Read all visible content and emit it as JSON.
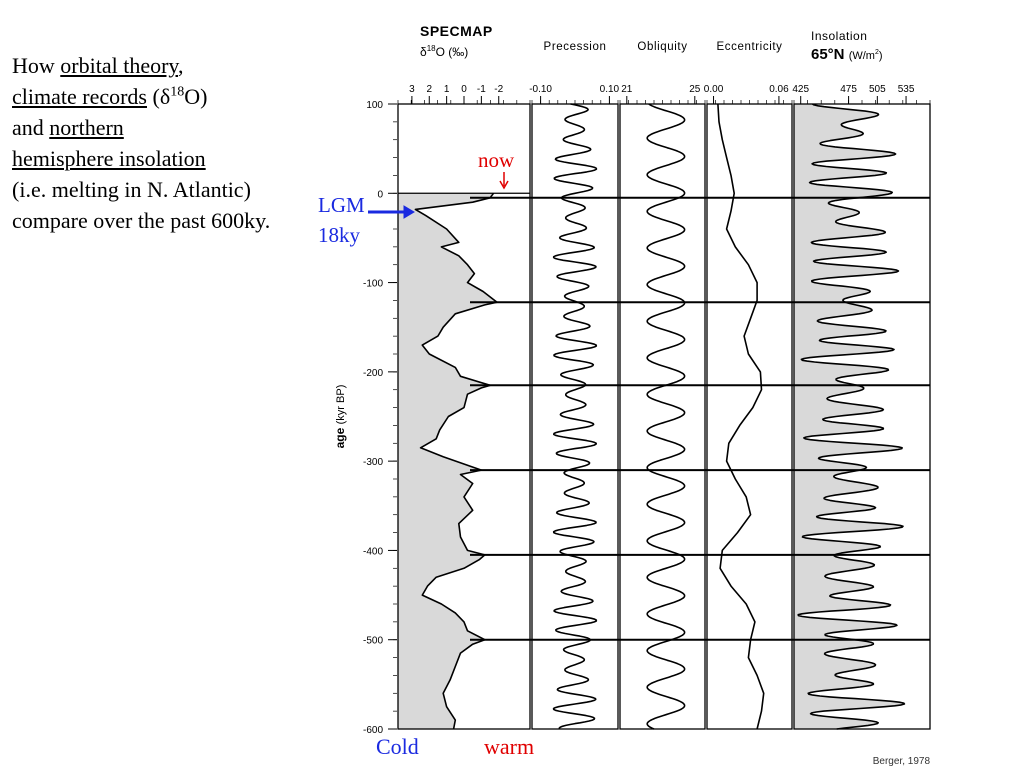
{
  "caption": {
    "p1": "How ",
    "orbital": "orbital theory",
    "p2": ",",
    "climate": "climate records",
    "p3": " (",
    "delta": "δ",
    "sup": "18",
    "p4": "O)",
    "p5": "and ",
    "northern": "northern",
    "hemisphere": "hemisphere insolation",
    "p6": "(i.e. melting in N. Atlantic) compare over the past 600ky."
  },
  "annotations": {
    "now": "now",
    "lgm": "LGM",
    "lgm_age": "18ky",
    "cold": "Cold",
    "warm": "warm"
  },
  "colors": {
    "fill": "#d9d9d9",
    "red": "#e00000",
    "blue": "#1a2ae0",
    "line": "#000000"
  },
  "chart_data": {
    "type": "line",
    "source": "Berger, 1978",
    "ylabel_bold": "age",
    "ylabel_rest": "(kyr BP)",
    "ylim": [
      100,
      -600
    ],
    "y_ticks": [
      "100",
      "0",
      "-100",
      "-200",
      "-300",
      "-400",
      "-500",
      "-600"
    ],
    "y_tick_values": [
      100,
      0,
      -100,
      -200,
      -300,
      -400,
      -500,
      -600
    ],
    "terminations_kyr": [
      -5,
      -122,
      -215,
      -310,
      -405,
      -500
    ],
    "panels": [
      {
        "id": "d18o",
        "title1": "SPECMAP",
        "title2_delta": "δ",
        "title2_sup": "18",
        "title2_rest": "O (‰)",
        "ticks": [
          "3",
          "2",
          "1",
          "0",
          "-1",
          "-2"
        ],
        "tick_values": [
          3,
          2,
          1,
          0,
          -1,
          -2
        ],
        "xlim": [
          3.8,
          -3.8
        ],
        "filled": true,
        "series": {
          "age": [
            0,
            -5,
            -10,
            -18,
            -25,
            -40,
            -55,
            -60,
            -70,
            -80,
            -90,
            -100,
            -110,
            -122,
            -125,
            -135,
            -150,
            -160,
            -170,
            -180,
            -195,
            -205,
            -215,
            -218,
            -225,
            -240,
            -250,
            -265,
            -275,
            -285,
            -295,
            -310,
            -315,
            -325,
            -340,
            -355,
            -370,
            -385,
            -400,
            -405,
            -410,
            -420,
            -430,
            -440,
            -450,
            -460,
            -470,
            -480,
            -490,
            -500,
            -505,
            -515,
            -530,
            -545,
            -560,
            -575,
            -590,
            -600
          ],
          "values": [
            -1.7,
            -1.5,
            -0.5,
            2.8,
            2.2,
            1.0,
            0.3,
            1.3,
            0.3,
            -0.2,
            -0.6,
            -0.2,
            -1.1,
            -1.9,
            -1.2,
            0.5,
            1.2,
            1.5,
            2.4,
            2.0,
            0.5,
            0.2,
            -1.5,
            -1.0,
            -0.2,
            0.0,
            0.9,
            1.4,
            1.6,
            2.5,
            1.2,
            -1.0,
            0.2,
            -0.5,
            0.0,
            -0.5,
            0.3,
            0.2,
            -0.2,
            -1.2,
            -0.9,
            0.0,
            1.6,
            2.1,
            2.4,
            1.3,
            0.5,
            0.0,
            -0.2,
            -1.2,
            -0.5,
            0.2,
            0.5,
            0.8,
            1.2,
            1.0,
            0.5,
            0.6
          ]
        }
      },
      {
        "id": "precession",
        "title1": "Precession",
        "ticks": [
          "-0.10",
          "0.10"
        ],
        "tick_values": [
          -0.1,
          0.1
        ],
        "xlim": [
          -0.125,
          0.125
        ],
        "filled": false,
        "series": {
          "period_kyr": 22,
          "amplitude": 0.045,
          "mod_period_kyr": 100,
          "mod_depth": 0.4,
          "center": 0.0
        }
      },
      {
        "id": "obliquity",
        "title1": "Obliquity",
        "ticks": [
          "21",
          "25"
        ],
        "tick_values": [
          21,
          25
        ],
        "xlim": [
          20.6,
          25.6
        ],
        "filled": false,
        "series": {
          "period_kyr": 41,
          "center": 23.3,
          "amplitude": 1.1
        }
      },
      {
        "id": "eccentricity",
        "title1": "Eccentricity",
        "ticks": [
          "0.00",
          "0.06"
        ],
        "tick_values": [
          0.0,
          0.06
        ],
        "xlim": [
          -0.006,
          0.072
        ],
        "filled": false,
        "series": {
          "age": [
            100,
            80,
            60,
            40,
            20,
            0,
            -20,
            -40,
            -60,
            -80,
            -100,
            -120,
            -140,
            -160,
            -180,
            -200,
            -220,
            -240,
            -260,
            -280,
            -300,
            -320,
            -340,
            -360,
            -380,
            -400,
            -420,
            -440,
            -460,
            -480,
            -500,
            -520,
            -540,
            -560,
            -580,
            -600
          ],
          "values": [
            0.004,
            0.005,
            0.008,
            0.012,
            0.016,
            0.019,
            0.016,
            0.012,
            0.02,
            0.032,
            0.04,
            0.04,
            0.034,
            0.028,
            0.032,
            0.043,
            0.044,
            0.036,
            0.024,
            0.014,
            0.012,
            0.02,
            0.03,
            0.034,
            0.022,
            0.008,
            0.006,
            0.016,
            0.03,
            0.038,
            0.034,
            0.032,
            0.04,
            0.046,
            0.044,
            0.04
          ]
        }
      },
      {
        "id": "insolation",
        "title1": "Insolation",
        "title2_big": "65°N",
        "title2_small": "(W/m",
        "title2_sup": "2",
        "title2_close": ")",
        "ticks": [
          "425",
          "475",
          "505",
          "535"
        ],
        "tick_values": [
          425,
          475,
          505,
          535
        ],
        "xlim": [
          418,
          560
        ],
        "filled": true,
        "series": {
          "center": 478,
          "precession_amp": 32,
          "obliquity_amp": 10,
          "mod_depth": 0.45
        }
      }
    ]
  }
}
